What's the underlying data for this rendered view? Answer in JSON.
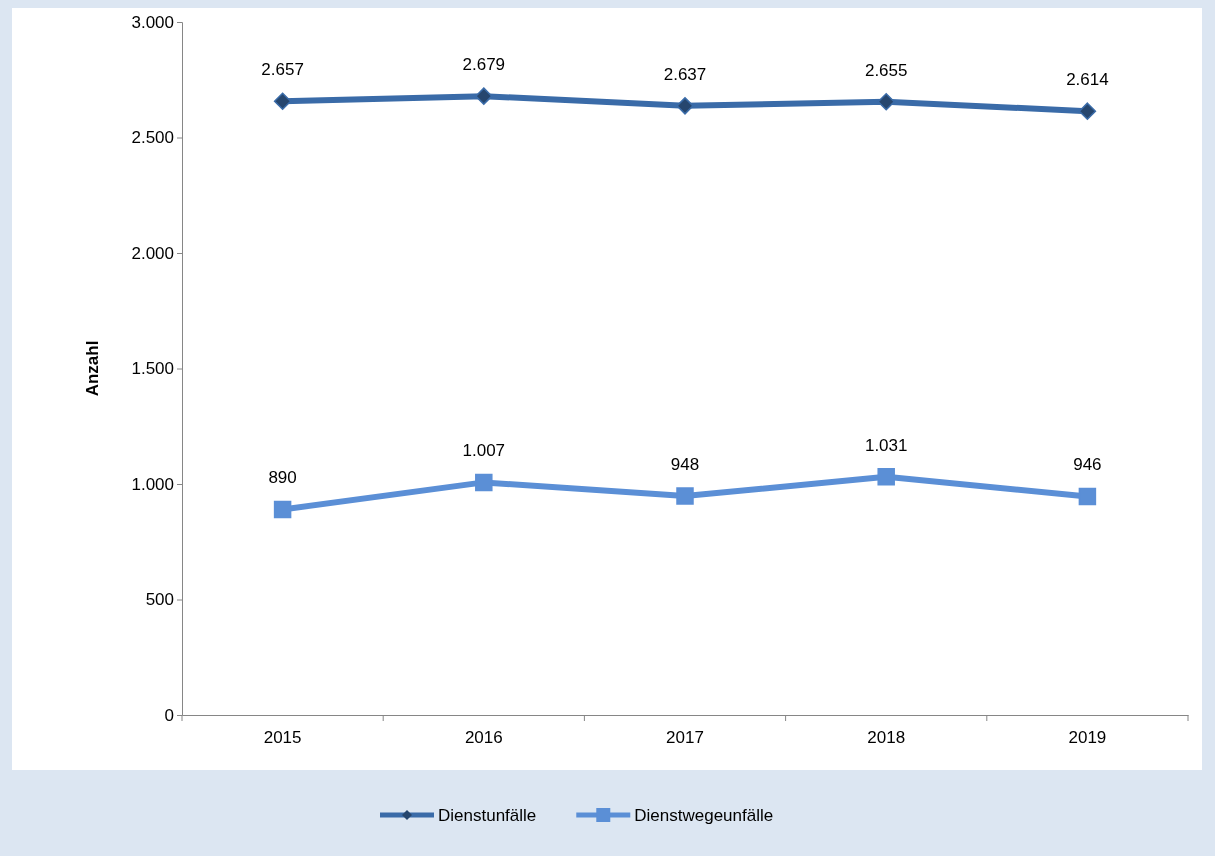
{
  "chart_data": {
    "type": "line",
    "ylabel": "Anzahl",
    "categories": [
      "2015",
      "2016",
      "2017",
      "2018",
      "2019"
    ],
    "ylim": [
      0,
      3000
    ],
    "yticks": [
      {
        "value": 0,
        "label": "0"
      },
      {
        "value": 500,
        "label": "500"
      },
      {
        "value": 1000,
        "label": "1.000"
      },
      {
        "value": 1500,
        "label": "1.500"
      },
      {
        "value": 2000,
        "label": "2.000"
      },
      {
        "value": 2500,
        "label": "2.500"
      },
      {
        "value": 3000,
        "label": "3.000"
      }
    ],
    "grid": false,
    "legend": "bottom",
    "series": [
      {
        "name": "Dienstunfälle",
        "color": "#3a6ba8",
        "marker": "diamond",
        "values": [
          2657,
          2679,
          2637,
          2655,
          2614
        ],
        "value_labels": [
          "2.657",
          "2.679",
          "2.637",
          "2.655",
          "2.614"
        ]
      },
      {
        "name": "Dienstwegeunfälle",
        "color": "#5b8fd6",
        "marker": "square",
        "values": [
          890,
          1007,
          948,
          1031,
          946
        ],
        "value_labels": [
          "890",
          "1.007",
          "948",
          "1.031",
          "946"
        ]
      }
    ]
  }
}
